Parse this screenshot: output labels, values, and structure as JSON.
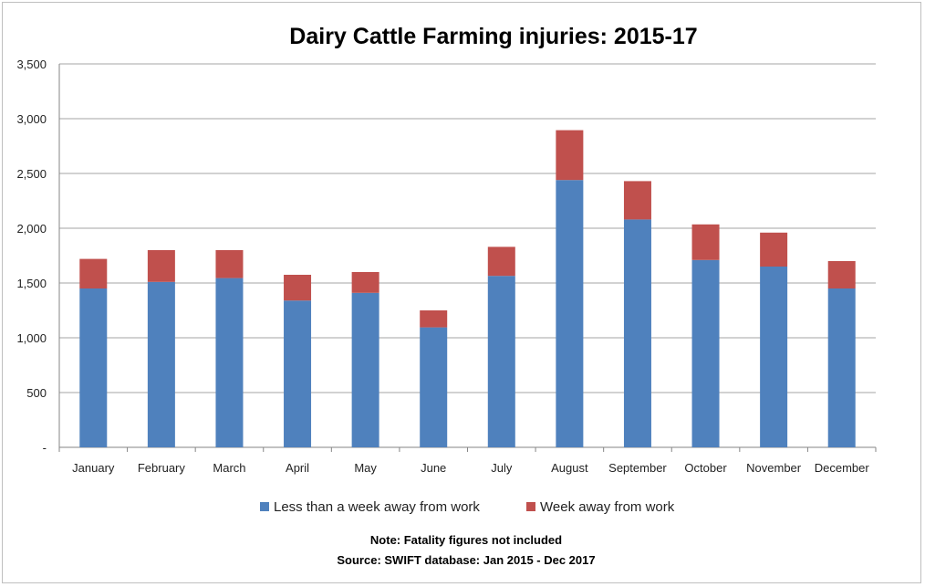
{
  "chart_data": {
    "type": "bar",
    "stacked": true,
    "title": "Dairy Cattle Farming injuries: 2015-17",
    "categories": [
      "January",
      "February",
      "March",
      "April",
      "May",
      "June",
      "July",
      "August",
      "September",
      "October",
      "November",
      "December"
    ],
    "series": [
      {
        "name": "Less than a week away from work",
        "color": "#4f81bd",
        "values": [
          1450,
          1510,
          1545,
          1340,
          1410,
          1095,
          1565,
          2440,
          2080,
          1710,
          1650,
          1450
        ]
      },
      {
        "name": "Week away from work",
        "color": "#c0504d",
        "values": [
          270,
          290,
          255,
          235,
          190,
          155,
          265,
          455,
          350,
          325,
          310,
          250
        ]
      }
    ],
    "yticks": [
      {
        "value": 0,
        "label": "-"
      },
      {
        "value": 500,
        "label": "500"
      },
      {
        "value": 1000,
        "label": "1,000"
      },
      {
        "value": 1500,
        "label": "1,500"
      },
      {
        "value": 2000,
        "label": "2,000"
      },
      {
        "value": 2500,
        "label": "2,500"
      },
      {
        "value": 3000,
        "label": "3,000"
      },
      {
        "value": 3500,
        "label": "3,500"
      }
    ],
    "ylim": [
      0,
      3500
    ],
    "grid": true,
    "legend_position": "bottom",
    "notes": [
      "Note: Fatality  figures not included",
      "Source: SWIFT database: Jan 2015 - Dec 2017"
    ]
  }
}
